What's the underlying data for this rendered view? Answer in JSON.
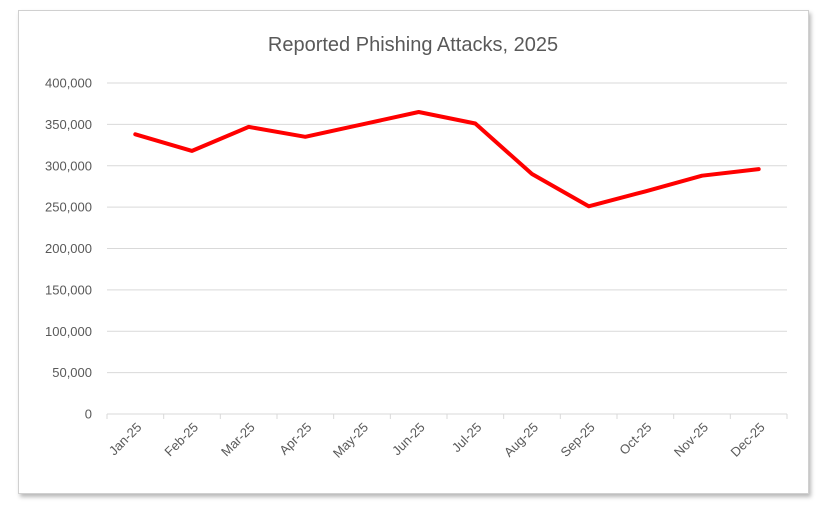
{
  "chart_data": {
    "type": "line",
    "title": "Reported Phishing Attacks, 2025",
    "xlabel": "",
    "ylabel": "",
    "categories": [
      "Jan-25",
      "Feb-25",
      "Mar-25",
      "Apr-25",
      "May-25",
      "Jun-25",
      "Jul-25",
      "Aug-25",
      "Sep-25",
      "Oct-25",
      "Nov-25",
      "Dec-25"
    ],
    "series": [
      {
        "values": [
          338000,
          318000,
          347000,
          335000,
          350000,
          365000,
          351000,
          290000,
          251000,
          269000,
          288000,
          296000
        ]
      }
    ],
    "ylim": [
      0,
      400000
    ],
    "yticks": [
      0,
      50000,
      100000,
      150000,
      200000,
      250000,
      300000,
      350000,
      400000
    ],
    "ytick_labels": [
      "0",
      "50,000",
      "100,000",
      "150,000",
      "200,000",
      "250,000",
      "300,000",
      "350,000",
      "400,000"
    ],
    "grid": "horizontal",
    "legend": "none",
    "line_color": "#ff0000",
    "grid_color": "#d9d9d9",
    "text_color": "#595959"
  }
}
